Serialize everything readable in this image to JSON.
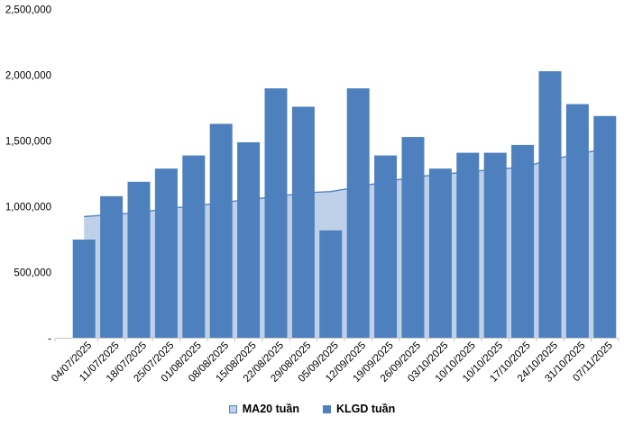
{
  "chart_data": {
    "type": "bar",
    "title": "",
    "xlabel": "",
    "ylabel": "",
    "categories": [
      "04/07/2025",
      "11/07/2025",
      "18/07/2025",
      "25/07/2025",
      "01/08/2025",
      "08/08/2025",
      "15/08/2025",
      "22/08/2025",
      "29/08/2025",
      "05/09/2025",
      "12/09/2025",
      "19/09/2025",
      "26/09/2025",
      "03/10/2025",
      "10/10/2025",
      "10/10/2025",
      "17/10/2025",
      "24/10/2025",
      "31/10/2025",
      "07/11/2025"
    ],
    "series": [
      {
        "name": "MA20 tuần",
        "type": "area",
        "values": [
          925000,
          940000,
          955000,
          985000,
          1005000,
          1030000,
          1055000,
          1075000,
          1105000,
          1115000,
          1150000,
          1190000,
          1225000,
          1245000,
          1265000,
          1285000,
          1300000,
          1355000,
          1400000,
          1440000
        ]
      },
      {
        "name": "KLGD tuần",
        "type": "bar",
        "values": [
          750000,
          1080000,
          1190000,
          1290000,
          1390000,
          1630000,
          1490000,
          1900000,
          1760000,
          820000,
          1900000,
          1390000,
          1530000,
          1290000,
          1410000,
          1410000,
          1470000,
          2030000,
          1780000,
          1690000
        ]
      }
    ],
    "ylim": [
      0,
      2500000
    ],
    "ytick_step": 500000,
    "y_tick_labels": [
      "2,500,000",
      "2,000,000",
      "1,500,000",
      "1,000,000",
      "500,000",
      "-"
    ],
    "grid": false,
    "legend_position": "bottom",
    "colors": {
      "bar": "#4d80bd",
      "ma_area": "#bfd1e8",
      "ma_line": "#5083c2",
      "axis": "#c8c8c8",
      "text": "#000000",
      "background": "#ffffff"
    }
  }
}
